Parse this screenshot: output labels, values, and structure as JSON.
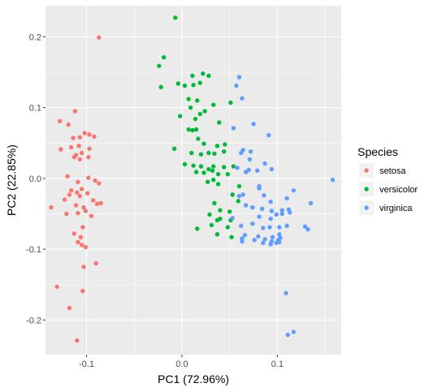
{
  "chart_data": {
    "type": "scatter",
    "xlabel": "PC1 (72.96%)",
    "ylabel": "PC2 (22.85%)",
    "xlim": [
      -0.143,
      0.167
    ],
    "ylim": [
      -0.249,
      0.244
    ],
    "x_ticks": [
      -0.1,
      0.0,
      0.1
    ],
    "x_tick_labels": [
      "-0.1",
      "0.0",
      "0.1"
    ],
    "y_ticks": [
      -0.2,
      -0.1,
      0.0,
      0.1,
      0.2
    ],
    "y_tick_labels": [
      "-0.2",
      "-0.1",
      "0.0",
      "0.1",
      "0.2"
    ],
    "grid": true,
    "legend_title": "Species",
    "legend_position": "right",
    "panel_background": "#ebebeb",
    "series": [
      {
        "name": "setosa",
        "color": "#F8766D",
        "points": [
          [
            -0.087,
            0.199
          ],
          [
            -0.112,
            0.095
          ],
          [
            -0.128,
            0.081
          ],
          [
            -0.119,
            0.076
          ],
          [
            -0.102,
            0.064
          ],
          [
            -0.097,
            0.062
          ],
          [
            -0.092,
            0.059
          ],
          [
            -0.107,
            0.058
          ],
          [
            -0.114,
            0.057
          ],
          [
            -0.108,
            0.046
          ],
          [
            -0.116,
            0.044
          ],
          [
            -0.097,
            0.042
          ],
          [
            -0.105,
            0.036
          ],
          [
            -0.111,
            0.033
          ],
          [
            -0.127,
            0.041
          ],
          [
            -0.098,
            0.03
          ],
          [
            -0.107,
            0.027
          ],
          [
            -0.113,
            0.03
          ],
          [
            -0.12,
            0.003
          ],
          [
            -0.098,
            0.001
          ],
          [
            -0.091,
            -0.003
          ],
          [
            -0.109,
            -0.005
          ],
          [
            -0.087,
            -0.007
          ],
          [
            -0.105,
            -0.015
          ],
          [
            -0.116,
            -0.017
          ],
          [
            -0.11,
            -0.02
          ],
          [
            -0.099,
            -0.021
          ],
          [
            -0.107,
            -0.025
          ],
          [
            -0.118,
            -0.023
          ],
          [
            -0.093,
            -0.031
          ],
          [
            -0.123,
            -0.03
          ],
          [
            -0.085,
            -0.035
          ],
          [
            -0.089,
            -0.036
          ],
          [
            -0.103,
            -0.041
          ],
          [
            -0.111,
            -0.038
          ],
          [
            -0.137,
            -0.041
          ],
          [
            -0.109,
            -0.049
          ],
          [
            -0.101,
            -0.046
          ],
          [
            -0.121,
            -0.05
          ],
          [
            -0.095,
            -0.053
          ],
          [
            -0.104,
            -0.069
          ],
          [
            -0.113,
            -0.078
          ],
          [
            -0.106,
            -0.083
          ],
          [
            -0.109,
            -0.09
          ],
          [
            -0.105,
            -0.094
          ],
          [
            -0.101,
            -0.097
          ],
          [
            -0.09,
            -0.12
          ],
          [
            -0.103,
            -0.125
          ],
          [
            -0.131,
            -0.153
          ],
          [
            -0.104,
            -0.159
          ],
          [
            -0.118,
            -0.183
          ],
          [
            -0.11,
            -0.229
          ]
        ]
      },
      {
        "name": "versicolor",
        "color": "#00BA38",
        "points": [
          [
            -0.007,
            0.227
          ],
          [
            -0.019,
            0.171
          ],
          [
            -0.024,
            0.159
          ],
          [
            0.022,
            0.148
          ],
          [
            0.011,
            0.145
          ],
          [
            0.028,
            0.145
          ],
          [
            0.003,
            0.131
          ],
          [
            0.012,
            0.132
          ],
          [
            0.019,
            0.135
          ],
          [
            -0.022,
            0.129
          ],
          [
            -0.004,
            0.134
          ],
          [
            0.007,
            0.112
          ],
          [
            0.016,
            0.11
          ],
          [
            0.009,
            0.1
          ],
          [
            0.033,
            0.104
          ],
          [
            0.051,
            0.107
          ],
          [
            0.024,
            0.095
          ],
          [
            0.019,
            0.091
          ],
          [
            -0.002,
            0.088
          ],
          [
            0.014,
            0.084
          ],
          [
            0.039,
            0.079
          ],
          [
            0.007,
            0.069
          ],
          [
            0.011,
            0.068
          ],
          [
            0.015,
            0.069
          ],
          [
            0.017,
            0.056
          ],
          [
            0.023,
            0.049
          ],
          [
            0.037,
            0.046
          ],
          [
            0.045,
            0.048
          ],
          [
            -0.008,
            0.042
          ],
          [
            0.01,
            0.036
          ],
          [
            0.02,
            0.034
          ],
          [
            0.028,
            0.036
          ],
          [
            0.034,
            0.035
          ],
          [
            0.044,
            0.038
          ],
          [
            0.003,
            0.02
          ],
          [
            0.012,
            0.018
          ],
          [
            0.02,
            0.017
          ],
          [
            0.033,
            0.017
          ],
          [
            0.032,
            0.011
          ],
          [
            0.044,
            0.016
          ],
          [
            0.054,
            0.017
          ],
          [
            0.028,
            0.013
          ],
          [
            0.015,
            0.009
          ],
          [
            0.023,
            0.008
          ],
          [
            0.038,
            0.006
          ],
          [
            0.048,
            0.006
          ],
          [
            0.033,
            -0.002
          ],
          [
            0.027,
            -0.005
          ],
          [
            0.038,
            -0.008
          ],
          [
            0.06,
            -0.011
          ],
          [
            0.053,
            -0.023
          ],
          [
            0.059,
            -0.032
          ],
          [
            0.034,
            -0.035
          ],
          [
            0.04,
            -0.045
          ],
          [
            0.05,
            -0.047
          ],
          [
            0.029,
            -0.051
          ],
          [
            0.037,
            -0.059
          ],
          [
            0.051,
            -0.059
          ],
          [
            0.04,
            -0.057
          ],
          [
            0.031,
            -0.066
          ],
          [
            0.048,
            -0.069
          ],
          [
            0.037,
            -0.079
          ],
          [
            0.052,
            -0.083
          ],
          [
            0.016,
            -0.071
          ]
        ]
      },
      {
        "name": "virginica",
        "color": "#619CFF",
        "points": [
          [
            0.06,
            0.143
          ],
          [
            0.057,
            0.131
          ],
          [
            0.063,
            0.113
          ],
          [
            0.075,
            0.077
          ],
          [
            0.054,
            0.071
          ],
          [
            0.091,
            0.061
          ],
          [
            0.064,
            0.04
          ],
          [
            0.072,
            0.038
          ],
          [
            0.062,
            0.036
          ],
          [
            0.071,
            0.027
          ],
          [
            0.087,
            0.021
          ],
          [
            0.058,
            0.015
          ],
          [
            0.07,
            0.012
          ],
          [
            0.067,
            0.009
          ],
          [
            0.079,
            0.011
          ],
          [
            0.094,
            0.013
          ],
          [
            0.081,
            -0.014
          ],
          [
            0.158,
            -0.002
          ],
          [
            0.081,
            -0.011
          ],
          [
            0.06,
            -0.025
          ],
          [
            0.064,
            -0.023
          ],
          [
            0.086,
            -0.024
          ],
          [
            0.093,
            -0.033
          ],
          [
            0.11,
            -0.028
          ],
          [
            0.117,
            -0.017
          ],
          [
            0.135,
            -0.035
          ],
          [
            0.067,
            -0.038
          ],
          [
            0.074,
            -0.041
          ],
          [
            0.084,
            -0.043
          ],
          [
            0.094,
            -0.046
          ],
          [
            0.105,
            -0.045
          ],
          [
            0.112,
            -0.044
          ],
          [
            0.053,
            -0.056
          ],
          [
            0.081,
            -0.054
          ],
          [
            0.093,
            -0.057
          ],
          [
            0.099,
            -0.051
          ],
          [
            0.105,
            -0.05
          ],
          [
            0.113,
            -0.048
          ],
          [
            0.062,
            -0.067
          ],
          [
            0.074,
            -0.064
          ],
          [
            0.085,
            -0.07
          ],
          [
            0.092,
            -0.069
          ],
          [
            0.102,
            -0.069
          ],
          [
            0.11,
            -0.067
          ],
          [
            0.066,
            -0.08
          ],
          [
            0.08,
            -0.082
          ],
          [
            0.095,
            -0.083
          ],
          [
            0.102,
            -0.079
          ],
          [
            0.129,
            -0.068
          ],
          [
            0.132,
            -0.072
          ],
          [
            0.063,
            -0.085
          ],
          [
            0.087,
            -0.086
          ],
          [
            0.094,
            -0.089
          ],
          [
            0.103,
            -0.084
          ],
          [
            0.063,
            -0.089
          ],
          [
            0.076,
            -0.087
          ],
          [
            0.101,
            -0.087
          ],
          [
            0.093,
            -0.093
          ],
          [
            0.099,
            -0.091
          ],
          [
            0.102,
            -0.09
          ],
          [
            0.085,
            -0.091
          ],
          [
            0.109,
            -0.162
          ],
          [
            0.117,
            -0.217
          ],
          [
            0.111,
            -0.221
          ]
        ]
      }
    ]
  }
}
